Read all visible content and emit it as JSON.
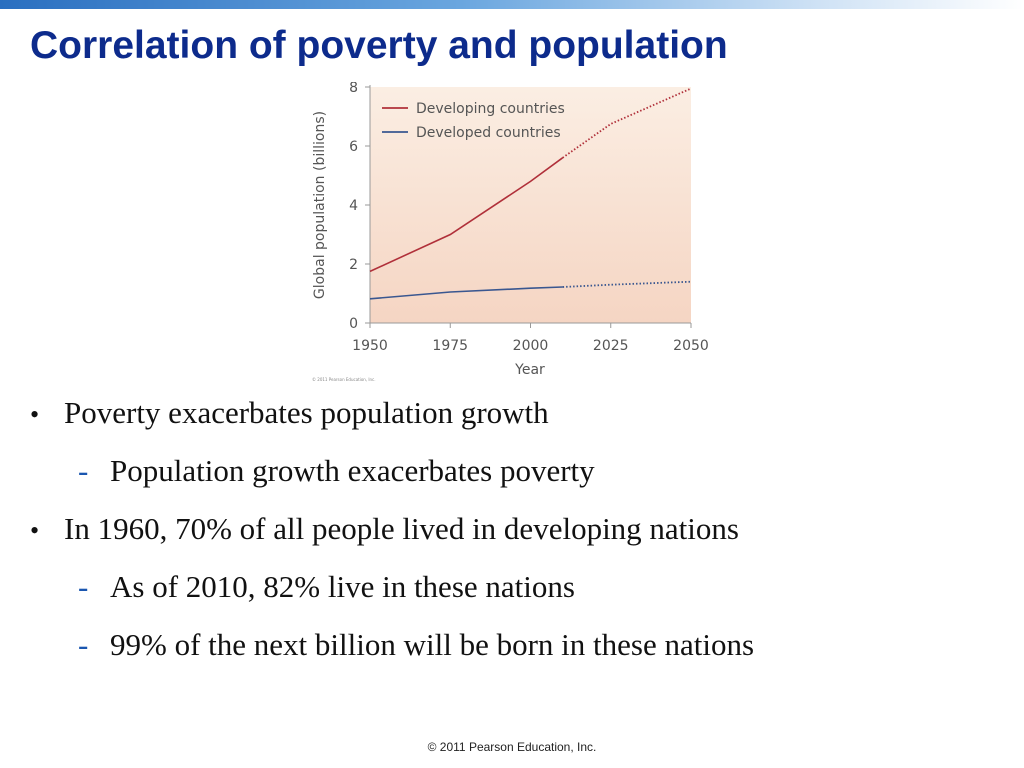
{
  "slide": {
    "title": "Correlation of poverty and population",
    "bullets": [
      {
        "text": "Poverty exacerbates population growth",
        "sub": [
          "Population growth exacerbates poverty"
        ]
      },
      {
        "text": "In 1960, 70% of all people lived in developing nations",
        "sub": [
          "As of 2010, 82% live in these nations",
          "99% of the next billion will be born in these nations"
        ]
      }
    ],
    "bullet_marker": "•",
    "sub_marker": "-",
    "footer": "© 2011 Pearson Education, Inc."
  },
  "chart_data": {
    "type": "line",
    "title": "",
    "xlabel": "Year",
    "ylabel": "Global population (billions)",
    "xlim": [
      1950,
      2050
    ],
    "ylim": [
      0,
      8
    ],
    "x_ticks": [
      1950,
      1975,
      2000,
      2025,
      2050
    ],
    "y_ticks": [
      0,
      2,
      4,
      6,
      8
    ],
    "legend_position": "top-left",
    "grid": false,
    "credit": "© 2011 Pearson Education, Inc.",
    "series": [
      {
        "name": "Developing countries",
        "color": "#b0303a",
        "x": [
          1950,
          1975,
          2000,
          2010,
          2025,
          2050
        ],
        "y": [
          1.75,
          3.0,
          4.8,
          5.6,
          6.75,
          7.95
        ],
        "projected_from": 2010
      },
      {
        "name": "Developed countries",
        "color": "#3a5790",
        "x": [
          1950,
          1975,
          2000,
          2010,
          2025,
          2050
        ],
        "y": [
          0.82,
          1.05,
          1.18,
          1.22,
          1.3,
          1.4
        ],
        "projected_from": 2010
      }
    ],
    "background_colors": {
      "top": "#fbeee3",
      "bottom": "#f5d5c3"
    }
  }
}
